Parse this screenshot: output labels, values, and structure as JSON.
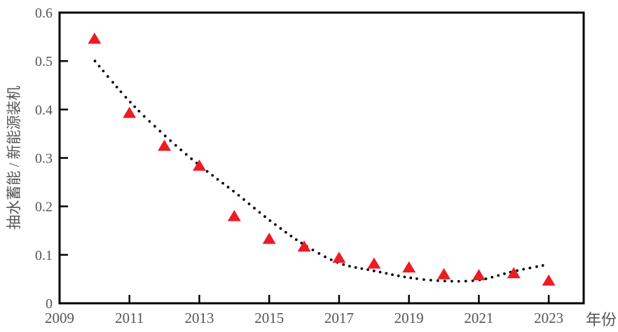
{
  "chart_data": {
    "type": "scatter",
    "xlabel": "年份",
    "ylabel": "抽水蓄能 / 新能源装机",
    "xlim": [
      2009,
      2024
    ],
    "ylim": [
      0,
      0.6
    ],
    "grid": false,
    "legend": "none",
    "x_ticks": [
      {
        "label": "2009",
        "value": 2009
      },
      {
        "label": "2011",
        "value": 2011
      },
      {
        "label": "2013",
        "value": 2013
      },
      {
        "label": "2015",
        "value": 2015
      },
      {
        "label": "2017",
        "value": 2017
      },
      {
        "label": "2019",
        "value": 2019
      },
      {
        "label": "2021",
        "value": 2021
      },
      {
        "label": "2023",
        "value": 2023
      }
    ],
    "y_ticks": [
      {
        "label": "0",
        "value": 0
      },
      {
        "label": "0.1",
        "value": 0.1
      },
      {
        "label": "0.2",
        "value": 0.2
      },
      {
        "label": "0.3",
        "value": 0.3
      },
      {
        "label": "0.4",
        "value": 0.4
      },
      {
        "label": "0.5",
        "value": 0.5
      },
      {
        "label": "0.6",
        "value": 0.6
      }
    ],
    "series": [
      {
        "marker": "triangle",
        "color": "#ED1C24",
        "x": [
          2010,
          2011,
          2012,
          2013,
          2014,
          2015,
          2016,
          2017,
          2018,
          2019,
          2020,
          2021,
          2022,
          2023
        ],
        "y": [
          0.545,
          0.392,
          0.324,
          0.283,
          0.179,
          0.132,
          0.116,
          0.093,
          0.081,
          0.073,
          0.059,
          0.057,
          0.061,
          0.046
        ]
      }
    ],
    "trendline": {
      "style": "dotted",
      "color": "#000000",
      "x": [
        2010,
        2011,
        2012,
        2013,
        2014,
        2015,
        2016,
        2017,
        2018,
        2019,
        2020,
        2021,
        2022,
        2022.9
      ],
      "y": [
        0.501,
        0.417,
        0.347,
        0.285,
        0.23,
        0.172,
        0.121,
        0.083,
        0.067,
        0.053,
        0.046,
        0.048,
        0.066,
        0.079
      ]
    }
  },
  "colors": {
    "marker_red": "#ED1C24",
    "axis_line": "#000000",
    "label_gray": "#555555"
  }
}
